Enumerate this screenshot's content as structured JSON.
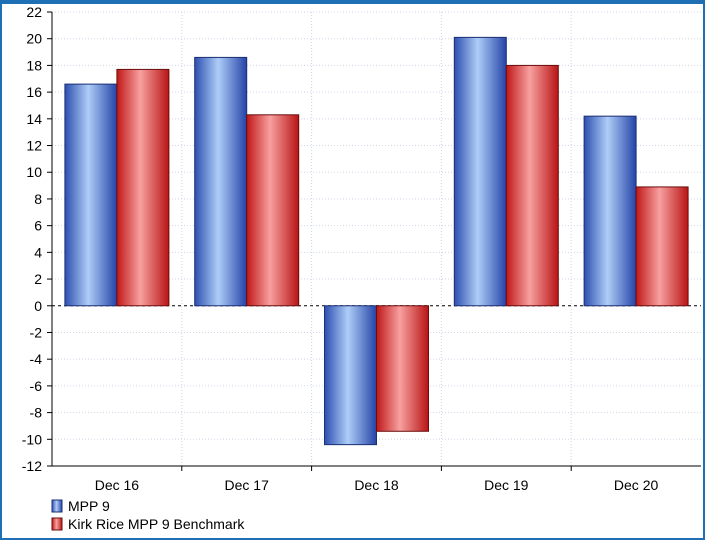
{
  "chart_data": {
    "type": "bar",
    "title": "",
    "xlabel": "",
    "ylabel": "",
    "categories": [
      "Dec 16",
      "Dec 17",
      "Dec 18",
      "Dec 19",
      "Dec 20"
    ],
    "ylim": [
      -12,
      22
    ],
    "yticks": [
      "22",
      "20",
      "18",
      "16",
      "14",
      "12",
      "10",
      "8",
      "6",
      "4",
      "2",
      "0",
      "-2",
      "-4",
      "-6",
      "-8",
      "-10",
      "-12"
    ],
    "grid": true,
    "legend_position": "bottom-left",
    "series": [
      {
        "name": "MPP 9",
        "color": "#3f6fd8",
        "values": [
          16.6,
          18.6,
          -10.4,
          20.1,
          14.2
        ]
      },
      {
        "name": "Kirk Rice MPP 9 Benchmark",
        "color": "#e03a3a",
        "values": [
          17.7,
          14.3,
          -9.4,
          18.0,
          8.9
        ]
      }
    ]
  }
}
